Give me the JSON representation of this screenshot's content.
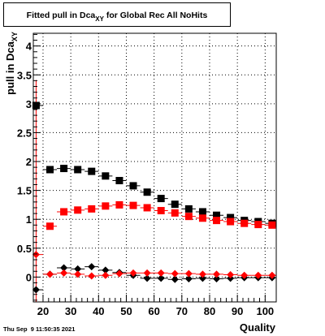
{
  "chart_data": {
    "type": "scatter",
    "title": {
      "prefix": "Fitted pull in Dca",
      "sub": "XY",
      "suffix": " for Global Rec All NoHits"
    },
    "ylabel": {
      "prefix": "pull in Dca",
      "sub": "XY"
    },
    "xlabel": "Quality",
    "xlim": [
      16.5,
      104
    ],
    "ylim": [
      -0.43,
      4.22
    ],
    "grid": true,
    "x_ticks": [
      20,
      30,
      40,
      50,
      60,
      70,
      80,
      90,
      100
    ],
    "y_ticks": [
      0,
      0.5,
      1,
      1.5,
      2,
      2.5,
      3,
      3.5,
      4
    ],
    "series": [
      {
        "marker": "square",
        "color": "#000000",
        "points": [
          {
            "x": 17.5,
            "y": 2.97
          },
          {
            "x": 22.5,
            "y": 1.86
          },
          {
            "x": 27.5,
            "y": 1.88
          },
          {
            "x": 32.5,
            "y": 1.86
          },
          {
            "x": 37.5,
            "y": 1.83
          },
          {
            "x": 42.5,
            "y": 1.75
          },
          {
            "x": 47.5,
            "y": 1.67
          },
          {
            "x": 52.5,
            "y": 1.58
          },
          {
            "x": 57.5,
            "y": 1.47
          },
          {
            "x": 62.5,
            "y": 1.36
          },
          {
            "x": 67.5,
            "y": 1.26
          },
          {
            "x": 72.5,
            "y": 1.18
          },
          {
            "x": 77.5,
            "y": 1.13
          },
          {
            "x": 82.5,
            "y": 1.07
          },
          {
            "x": 87.5,
            "y": 1.03
          },
          {
            "x": 92.5,
            "y": 0.98
          },
          {
            "x": 97.5,
            "y": 0.96
          },
          {
            "x": 102.5,
            "y": 0.93
          }
        ]
      },
      {
        "marker": "square",
        "color": "#ff0000",
        "points": [
          {
            "x": 22.5,
            "y": 0.88
          },
          {
            "x": 27.5,
            "y": 1.13
          },
          {
            "x": 32.5,
            "y": 1.16
          },
          {
            "x": 37.5,
            "y": 1.18
          },
          {
            "x": 42.5,
            "y": 1.23
          },
          {
            "x": 47.5,
            "y": 1.25
          },
          {
            "x": 52.5,
            "y": 1.24
          },
          {
            "x": 57.5,
            "y": 1.2
          },
          {
            "x": 62.5,
            "y": 1.15
          },
          {
            "x": 67.5,
            "y": 1.11
          },
          {
            "x": 72.5,
            "y": 1.05
          },
          {
            "x": 77.5,
            "y": 1.02
          },
          {
            "x": 82.5,
            "y": 0.98
          },
          {
            "x": 87.5,
            "y": 0.96
          },
          {
            "x": 92.5,
            "y": 0.93
          },
          {
            "x": 97.5,
            "y": 0.91
          },
          {
            "x": 102.5,
            "y": 0.9
          }
        ]
      },
      {
        "marker": "diamond",
        "color": "#000000",
        "points": [
          {
            "x": 17.5,
            "y": -0.22
          },
          {
            "x": 22.5,
            "y": 0.05
          },
          {
            "x": 27.5,
            "y": 0.16
          },
          {
            "x": 32.5,
            "y": 0.14
          },
          {
            "x": 37.5,
            "y": 0.18
          },
          {
            "x": 42.5,
            "y": 0.12
          },
          {
            "x": 47.5,
            "y": 0.08
          },
          {
            "x": 52.5,
            "y": 0.03
          },
          {
            "x": 57.5,
            "y": -0.02
          },
          {
            "x": 62.5,
            "y": -0.02
          },
          {
            "x": 67.5,
            "y": -0.04
          },
          {
            "x": 72.5,
            "y": -0.03
          },
          {
            "x": 77.5,
            "y": -0.02
          },
          {
            "x": 82.5,
            "y": -0.03
          },
          {
            "x": 87.5,
            "y": -0.02
          },
          {
            "x": 92.5,
            "y": -0.01
          },
          {
            "x": 97.5,
            "y": -0.01
          },
          {
            "x": 102.5,
            "y": -0.01
          }
        ]
      },
      {
        "marker": "diamond",
        "color": "#ff0000",
        "points": [
          {
            "x": 17.5,
            "y": 0.39
          },
          {
            "x": 22.5,
            "y": 0.05
          },
          {
            "x": 27.5,
            "y": 0.07
          },
          {
            "x": 32.5,
            "y": 0.05
          },
          {
            "x": 37.5,
            "y": 0.02
          },
          {
            "x": 42.5,
            "y": 0.03
          },
          {
            "x": 47.5,
            "y": 0.06
          },
          {
            "x": 52.5,
            "y": 0.07
          },
          {
            "x": 57.5,
            "y": 0.07
          },
          {
            "x": 62.5,
            "y": 0.07
          },
          {
            "x": 67.5,
            "y": 0.06
          },
          {
            "x": 72.5,
            "y": 0.06
          },
          {
            "x": 77.5,
            "y": 0.05
          },
          {
            "x": 82.5,
            "y": 0.05
          },
          {
            "x": 87.5,
            "y": 0.04
          },
          {
            "x": 92.5,
            "y": 0.03
          },
          {
            "x": 97.5,
            "y": 0.03
          },
          {
            "x": 102.5,
            "y": 0.03
          }
        ]
      }
    ]
  },
  "footer": "Thu Sep  9 11:50:35 2021"
}
